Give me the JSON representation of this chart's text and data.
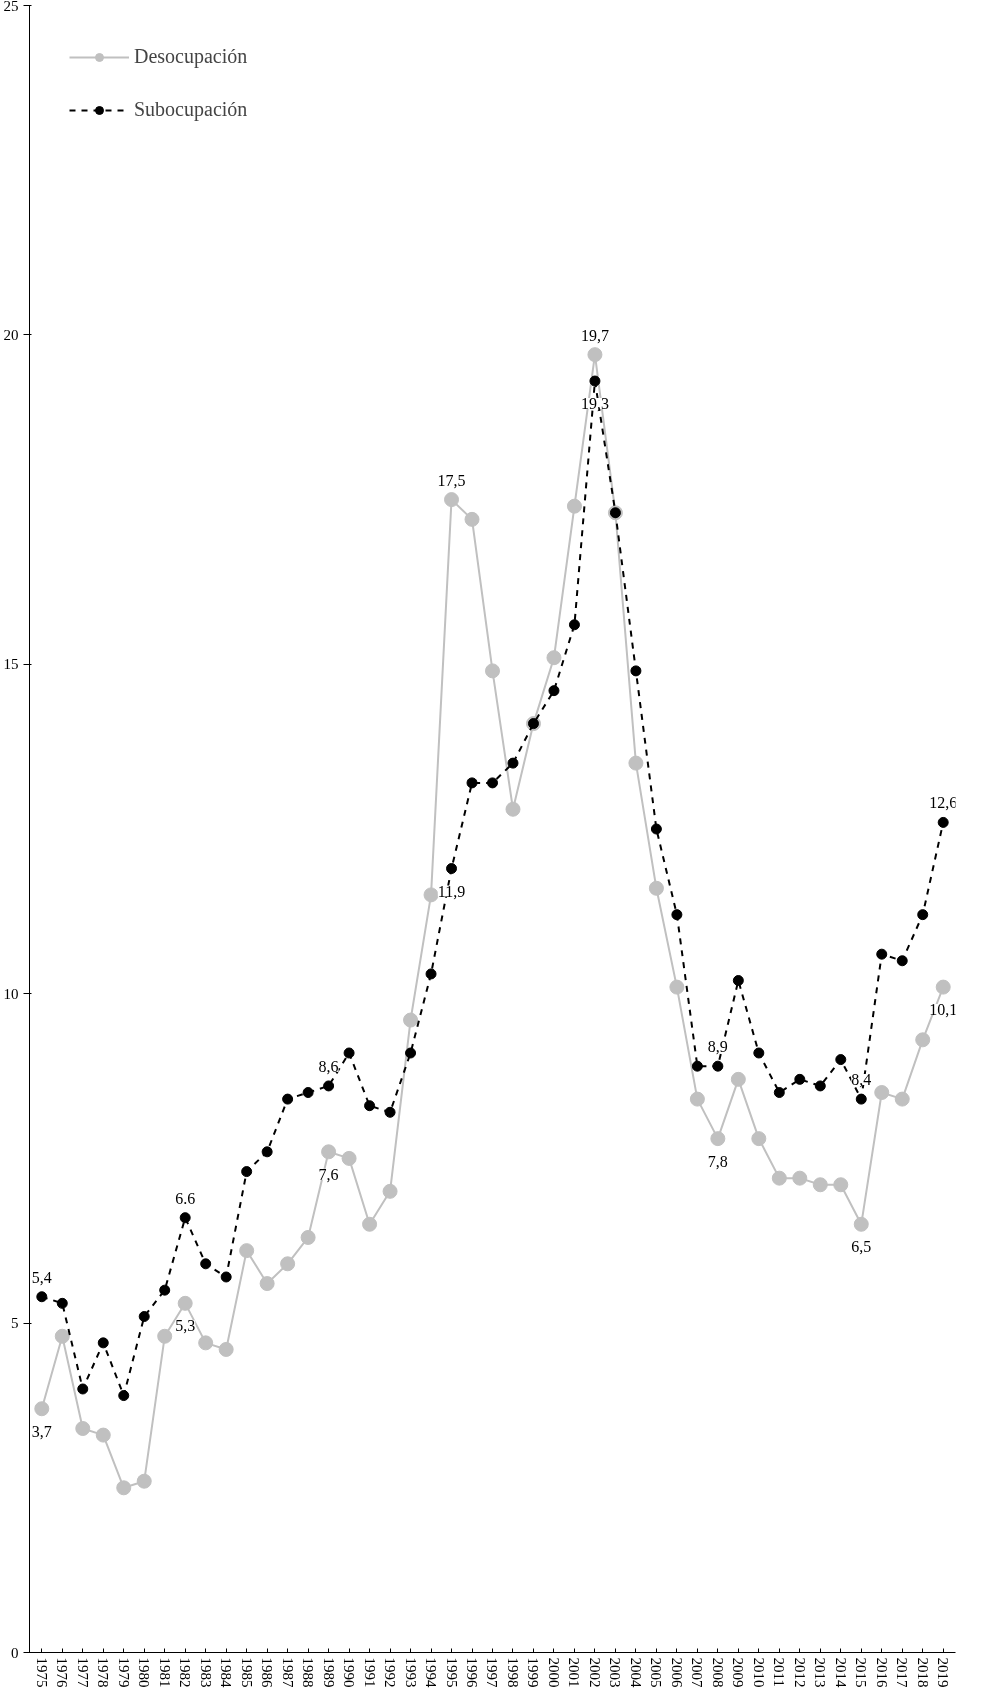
{
  "chart_data": {
    "type": "line",
    "categories": [
      "1975",
      "1976",
      "1977",
      "1978",
      "1979",
      "1980",
      "1981",
      "1982",
      "1983",
      "1984",
      "1985",
      "1986",
      "1987",
      "1988",
      "1989",
      "1990",
      "1991",
      "1992",
      "1993",
      "1994",
      "1995",
      "1996",
      "1997",
      "1998",
      "1999",
      "2000",
      "2001",
      "2002",
      "2003",
      "2004",
      "2005",
      "2006",
      "2007",
      "2008",
      "2009",
      "2010",
      "2011",
      "2012",
      "2013",
      "2014",
      "2015",
      "2016",
      "2017",
      "2018",
      "2019"
    ],
    "series": [
      {
        "name": "Desocupación",
        "color": "#c0c0c0",
        "line_style": "solid",
        "values": [
          3.7,
          4.8,
          3.4,
          3.3,
          2.5,
          2.6,
          4.8,
          5.3,
          4.7,
          4.6,
          6.1,
          5.6,
          5.9,
          6.3,
          7.6,
          7.5,
          6.5,
          7.0,
          9.6,
          11.5,
          17.5,
          17.2,
          14.9,
          12.8,
          14.1,
          15.1,
          17.4,
          19.7,
          17.3,
          13.5,
          11.6,
          10.1,
          8.4,
          7.8,
          8.7,
          7.8,
          7.2,
          7.2,
          7.1,
          7.1,
          6.5,
          8.5,
          8.4,
          9.3,
          10.1
        ],
        "value_labels": [
          "3,7",
          null,
          null,
          null,
          null,
          null,
          null,
          "5,3",
          null,
          null,
          null,
          null,
          null,
          null,
          "7,6",
          null,
          null,
          null,
          null,
          null,
          "17,5",
          null,
          null,
          null,
          null,
          null,
          null,
          "19,7",
          null,
          null,
          null,
          null,
          null,
          "7,8",
          null,
          null,
          null,
          null,
          null,
          null,
          "6,5",
          null,
          null,
          null,
          "10,1"
        ]
      },
      {
        "name": "Subocupación",
        "color": "#000000",
        "line_style": "dashed",
        "values": [
          5.4,
          5.3,
          4.0,
          4.7,
          3.9,
          5.1,
          5.5,
          6.6,
          5.9,
          5.7,
          7.3,
          7.6,
          8.4,
          8.5,
          8.6,
          9.1,
          8.3,
          8.2,
          9.1,
          10.3,
          11.9,
          13.2,
          13.2,
          13.5,
          14.1,
          14.6,
          15.6,
          19.3,
          17.3,
          14.9,
          12.5,
          11.2,
          8.9,
          8.9,
          10.2,
          9.1,
          8.5,
          8.7,
          8.6,
          9.0,
          8.4,
          10.6,
          10.5,
          11.2,
          12.6
        ],
        "value_labels": [
          "5,4",
          null,
          null,
          null,
          null,
          null,
          null,
          "6.6",
          null,
          null,
          null,
          null,
          null,
          null,
          "8,6",
          null,
          null,
          null,
          null,
          null,
          "11,9",
          null,
          null,
          null,
          null,
          null,
          null,
          "19,3",
          null,
          null,
          null,
          null,
          null,
          "8,9",
          null,
          null,
          null,
          null,
          null,
          null,
          "8,4",
          null,
          null,
          null,
          "12,6"
        ]
      }
    ],
    "ylim": [
      0,
      25
    ],
    "yticks": [
      0,
      5,
      10,
      15,
      20,
      25
    ],
    "grid": false,
    "legend": "top left",
    "marker": "circle"
  }
}
